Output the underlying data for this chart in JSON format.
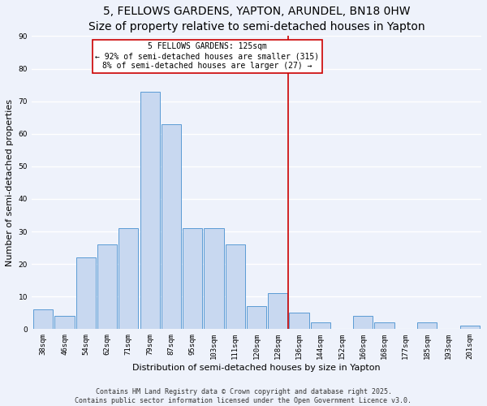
{
  "title": "5, FELLOWS GARDENS, YAPTON, ARUNDEL, BN18 0HW",
  "subtitle": "Size of property relative to semi-detached houses in Yapton",
  "xlabel": "Distribution of semi-detached houses by size in Yapton",
  "ylabel": "Number of semi-detached properties",
  "bar_labels": [
    "38sqm",
    "46sqm",
    "54sqm",
    "62sqm",
    "71sqm",
    "79sqm",
    "87sqm",
    "95sqm",
    "103sqm",
    "111sqm",
    "120sqm",
    "128sqm",
    "136sqm",
    "144sqm",
    "152sqm",
    "160sqm",
    "168sqm",
    "177sqm",
    "185sqm",
    "193sqm",
    "201sqm"
  ],
  "bar_values": [
    6,
    4,
    22,
    26,
    31,
    73,
    63,
    31,
    31,
    26,
    7,
    11,
    5,
    2,
    0,
    4,
    2,
    0,
    2,
    0,
    1
  ],
  "bar_color": "#c8d8f0",
  "bar_edge_color": "#5b9bd5",
  "ylim": [
    0,
    90
  ],
  "yticks": [
    0,
    10,
    20,
    30,
    40,
    50,
    60,
    70,
    80,
    90
  ],
  "property_line_x": 11.5,
  "property_line_color": "#cc0000",
  "annotation_title": "5 FELLOWS GARDENS: 125sqm",
  "annotation_line1": "← 92% of semi-detached houses are smaller (315)",
  "annotation_line2": "8% of semi-detached houses are larger (27) →",
  "annotation_box_color": "#ffffff",
  "annotation_box_edge": "#cc0000",
  "footer_line1": "Contains HM Land Registry data © Crown copyright and database right 2025.",
  "footer_line2": "Contains public sector information licensed under the Open Government Licence v3.0.",
  "background_color": "#eef2fb",
  "grid_color": "#ffffff",
  "title_fontsize": 10,
  "subtitle_fontsize": 8.5,
  "tick_fontsize": 6.5,
  "label_fontsize": 8,
  "annotation_fontsize": 7,
  "footer_fontsize": 6
}
